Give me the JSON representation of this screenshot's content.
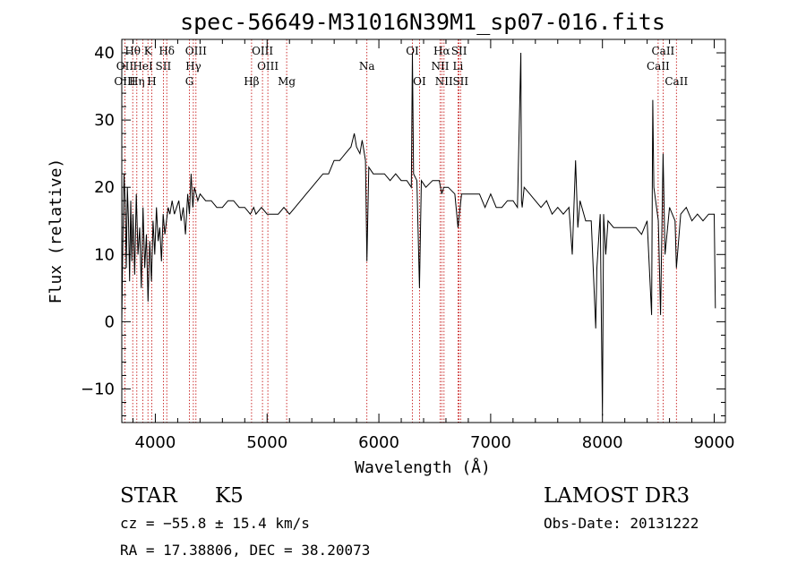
{
  "chart_data": {
    "type": "line",
    "title": "spec-56649-M31016N39M1_sp07-016.fits",
    "xlabel": "Wavelength (Å)",
    "ylabel": "Flux (relative)",
    "xlim": [
      3700,
      9100
    ],
    "ylim": [
      -15,
      42
    ],
    "xticks": [
      4000,
      5000,
      6000,
      7000,
      8000,
      9000
    ],
    "yticks": [
      -10,
      0,
      10,
      20,
      30,
      40
    ],
    "grid": false,
    "spectral_lines": [
      {
        "label": "Hθ",
        "wavelength": 3798,
        "row": 1
      },
      {
        "label": "K",
        "wavelength": 3934,
        "row": 1
      },
      {
        "label": "Hδ",
        "wavelength": 4102,
        "row": 1
      },
      {
        "label": "OIII",
        "wavelength": 4363,
        "row": 1
      },
      {
        "label": "OIII",
        "wavelength": 4959,
        "row": 1
      },
      {
        "label": "OI",
        "wavelength": 6300,
        "row": 1
      },
      {
        "label": "Hα",
        "wavelength": 6563,
        "row": 1
      },
      {
        "label": "SII",
        "wavelength": 6717,
        "row": 1
      },
      {
        "label": "CaII",
        "wavelength": 8542,
        "row": 1
      },
      {
        "label": "OII",
        "wavelength": 3727,
        "row": 2
      },
      {
        "label": "HeI",
        "wavelength": 3889,
        "row": 2
      },
      {
        "label": "SII",
        "wavelength": 4072,
        "row": 2
      },
      {
        "label": "Hγ",
        "wavelength": 4340,
        "row": 2
      },
      {
        "label": "OIII",
        "wavelength": 5007,
        "row": 2
      },
      {
        "label": "Na",
        "wavelength": 5893,
        "row": 2
      },
      {
        "label": "NII",
        "wavelength": 6548,
        "row": 2
      },
      {
        "label": "Li",
        "wavelength": 6708,
        "row": 2
      },
      {
        "label": "CaII",
        "wavelength": 8498,
        "row": 2
      },
      {
        "label": "OIII",
        "wavelength": 3727,
        "row": 3
      },
      {
        "label": "Hη",
        "wavelength": 3835,
        "row": 3
      },
      {
        "label": "H",
        "wavelength": 3968,
        "row": 3
      },
      {
        "label": "G",
        "wavelength": 4305,
        "row": 3
      },
      {
        "label": "Hβ",
        "wavelength": 4861,
        "row": 3
      },
      {
        "label": "Mg",
        "wavelength": 5175,
        "row": 3
      },
      {
        "label": "OI",
        "wavelength": 6363,
        "row": 3
      },
      {
        "label": "NII",
        "wavelength": 6583,
        "row": 3
      },
      {
        "label": "SII",
        "wavelength": 6731,
        "row": 3
      },
      {
        "label": "CaII",
        "wavelength": 8662,
        "row": 3
      }
    ],
    "series": [
      {
        "name": "flux",
        "x": [
          3700,
          3710,
          3720,
          3730,
          3740,
          3750,
          3760,
          3770,
          3780,
          3790,
          3800,
          3815,
          3830,
          3845,
          3860,
          3875,
          3890,
          3905,
          3920,
          3935,
          3950,
          3965,
          3980,
          3995,
          4010,
          4025,
          4040,
          4055,
          4070,
          4085,
          4100,
          4115,
          4130,
          4150,
          4170,
          4190,
          4210,
          4230,
          4250,
          4270,
          4290,
          4305,
          4320,
          4335,
          4350,
          4365,
          4380,
          4400,
          4450,
          4500,
          4550,
          4600,
          4650,
          4700,
          4750,
          4800,
          4850,
          4880,
          4900,
          4950,
          5000,
          5050,
          5100,
          5150,
          5200,
          5250,
          5300,
          5350,
          5400,
          5450,
          5500,
          5550,
          5600,
          5650,
          5700,
          5750,
          5780,
          5800,
          5830,
          5850,
          5880,
          5893,
          5910,
          5950,
          6000,
          6050,
          6100,
          6150,
          6200,
          6250,
          6290,
          6300,
          6310,
          6340,
          6363,
          6380,
          6420,
          6480,
          6540,
          6563,
          6580,
          6620,
          6680,
          6708,
          6740,
          6800,
          6850,
          6900,
          6950,
          7000,
          7050,
          7100,
          7150,
          7200,
          7240,
          7270,
          7276,
          7282,
          7300,
          7350,
          7400,
          7450,
          7500,
          7550,
          7600,
          7650,
          7700,
          7730,
          7760,
          7780,
          7800,
          7850,
          7900,
          7940,
          7950,
          7980,
          8000,
          8010,
          8030,
          8050,
          8100,
          8150,
          8200,
          8250,
          8300,
          8350,
          8400,
          8440,
          8450,
          8460,
          8500,
          8520,
          8542,
          8560,
          8600,
          8650,
          8662,
          8700,
          8750,
          8800,
          8850,
          8900,
          8950,
          9000,
          9010
        ],
        "values": [
          0,
          12,
          22,
          18,
          8,
          20,
          15,
          6,
          18,
          9,
          16,
          7,
          19,
          10,
          14,
          5,
          17,
          8,
          13,
          3,
          12,
          6,
          15,
          10,
          17,
          12,
          14,
          9,
          16,
          13,
          15,
          17,
          16,
          18,
          16,
          17,
          18,
          15,
          17,
          13,
          19,
          16,
          22,
          17,
          20,
          19,
          18,
          19,
          18,
          18,
          17,
          17,
          18,
          18,
          17,
          17,
          16,
          17,
          16,
          17,
          16,
          16,
          16,
          17,
          16,
          17,
          18,
          19,
          20,
          21,
          22,
          22,
          24,
          24,
          25,
          26,
          28,
          26,
          25,
          27,
          24,
          9,
          23,
          22,
          22,
          22,
          21,
          22,
          21,
          21,
          20,
          40,
          22,
          21,
          5,
          21,
          20,
          21,
          21,
          19,
          20,
          20,
          19,
          14,
          19,
          19,
          19,
          19,
          17,
          19,
          17,
          17,
          18,
          18,
          17,
          40,
          18,
          17,
          20,
          19,
          18,
          17,
          18,
          16,
          17,
          16,
          17,
          10,
          24,
          14,
          18,
          15,
          15,
          -1,
          8,
          16,
          -14,
          16,
          10,
          15,
          14,
          14,
          14,
          14,
          14,
          13,
          15,
          1,
          33,
          20,
          15,
          1,
          25,
          10,
          17,
          15,
          8,
          16,
          17,
          15,
          16,
          15,
          16,
          16,
          2
        ]
      }
    ]
  },
  "footer": {
    "object_class": "STAR",
    "subclass": "K5",
    "survey": "LAMOST DR3",
    "redshift": "cz = −55.8 ± 15.4 km/s",
    "obs_date": "Obs-Date: 20131222",
    "coords": "RA =  17.38806, DEC =  38.20073"
  },
  "colors": {
    "spectrum": "#000000",
    "line_markers": "#c00000",
    "frame": "#000000"
  }
}
